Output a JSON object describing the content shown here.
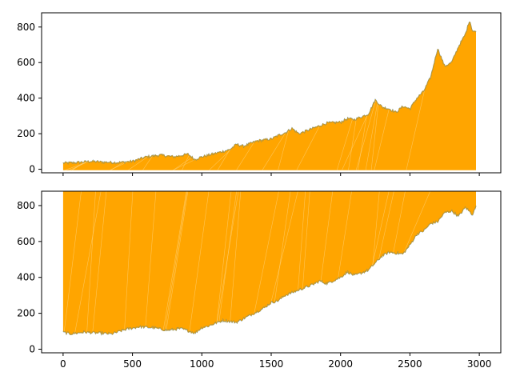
{
  "chart_data": [
    {
      "type": "area",
      "panel": "top",
      "xlim": [
        -155,
        3155
      ],
      "ylim": [
        -20,
        880
      ],
      "x_ticks": [
        0,
        500,
        1000,
        1500,
        2000,
        2500,
        3000
      ],
      "x_tick_labels": [
        "",
        "",
        "",
        "",
        "",
        "",
        ""
      ],
      "y_ticks": [
        0,
        200,
        400,
        600,
        800
      ],
      "y_tick_labels": [
        "0",
        "200",
        "400",
        "600",
        "800"
      ],
      "grid": false,
      "x_range": [
        0,
        2980
      ],
      "fill_color": "#ffa500",
      "edge_color": "#1f77b4",
      "series": [
        {
          "role": "upper_edge",
          "points": [
            [
              0,
              35
            ],
            [
              100,
              38
            ],
            [
              200,
              45
            ],
            [
              300,
              40
            ],
            [
              400,
              38
            ],
            [
              500,
              45
            ],
            [
              600,
              70
            ],
            [
              700,
              80
            ],
            [
              800,
              70
            ],
            [
              900,
              85
            ],
            [
              950,
              55
            ],
            [
              1000,
              70
            ],
            [
              1100,
              90
            ],
            [
              1200,
              110
            ],
            [
              1250,
              140
            ],
            [
              1300,
              130
            ],
            [
              1400,
              160
            ],
            [
              1500,
              170
            ],
            [
              1550,
              190
            ],
            [
              1600,
              205
            ],
            [
              1650,
              230
            ],
            [
              1700,
              200
            ],
            [
              1800,
              230
            ],
            [
              1900,
              260
            ],
            [
              2000,
              265
            ],
            [
              2050,
              285
            ],
            [
              2100,
              280
            ],
            [
              2200,
              310
            ],
            [
              2250,
              390
            ],
            [
              2300,
              350
            ],
            [
              2350,
              340
            ],
            [
              2400,
              320
            ],
            [
              2450,
              355
            ],
            [
              2500,
              340
            ],
            [
              2550,
              400
            ],
            [
              2600,
              440
            ],
            [
              2650,
              520
            ],
            [
              2700,
              680
            ],
            [
              2750,
              580
            ],
            [
              2800,
              600
            ],
            [
              2850,
              690
            ],
            [
              2900,
              760
            ],
            [
              2930,
              840
            ],
            [
              2950,
              780
            ],
            [
              2980,
              770
            ]
          ]
        },
        {
          "role": "lower_edge",
          "points": [
            [
              0,
              -5
            ],
            [
              3000,
              -5
            ]
          ]
        }
      ]
    },
    {
      "type": "area",
      "panel": "bottom",
      "xlim": [
        -155,
        3155
      ],
      "ylim": [
        -20,
        880
      ],
      "x_ticks": [
        0,
        500,
        1000,
        1500,
        2000,
        2500,
        3000
      ],
      "x_tick_labels": [
        "0",
        "500",
        "1000",
        "1500",
        "2000",
        "2500",
        "3000"
      ],
      "y_ticks": [
        0,
        200,
        400,
        600,
        800
      ],
      "y_tick_labels": [
        "0",
        "200",
        "400",
        "600",
        "800"
      ],
      "grid": false,
      "x_range": [
        0,
        2980
      ],
      "fill_color": "#ffa500",
      "edge_color": "#1f77b4",
      "series": [
        {
          "role": "upper_edge",
          "points": [
            [
              0,
              880
            ],
            [
              3000,
              880
            ]
          ]
        },
        {
          "role": "lower_edge",
          "points": [
            [
              0,
              95
            ],
            [
              50,
              85
            ],
            [
              150,
              95
            ],
            [
              250,
              90
            ],
            [
              350,
              85
            ],
            [
              450,
              110
            ],
            [
              550,
              125
            ],
            [
              650,
              120
            ],
            [
              750,
              105
            ],
            [
              850,
              115
            ],
            [
              950,
              90
            ],
            [
              1000,
              120
            ],
            [
              1050,
              130
            ],
            [
              1150,
              160
            ],
            [
              1250,
              150
            ],
            [
              1350,
              190
            ],
            [
              1450,
              230
            ],
            [
              1500,
              260
            ],
            [
              1550,
              270
            ],
            [
              1600,
              300
            ],
            [
              1700,
              330
            ],
            [
              1800,
              360
            ],
            [
              1850,
              380
            ],
            [
              1900,
              365
            ],
            [
              2000,
              400
            ],
            [
              2050,
              430
            ],
            [
              2100,
              410
            ],
            [
              2200,
              440
            ],
            [
              2250,
              480
            ],
            [
              2300,
              520
            ],
            [
              2350,
              540
            ],
            [
              2450,
              530
            ],
            [
              2500,
              580
            ],
            [
              2550,
              640
            ],
            [
              2600,
              660
            ],
            [
              2650,
              700
            ],
            [
              2700,
              710
            ],
            [
              2750,
              760
            ],
            [
              2800,
              770
            ],
            [
              2850,
              740
            ],
            [
              2900,
              790
            ],
            [
              2950,
              750
            ],
            [
              2980,
              800
            ]
          ]
        }
      ]
    }
  ]
}
